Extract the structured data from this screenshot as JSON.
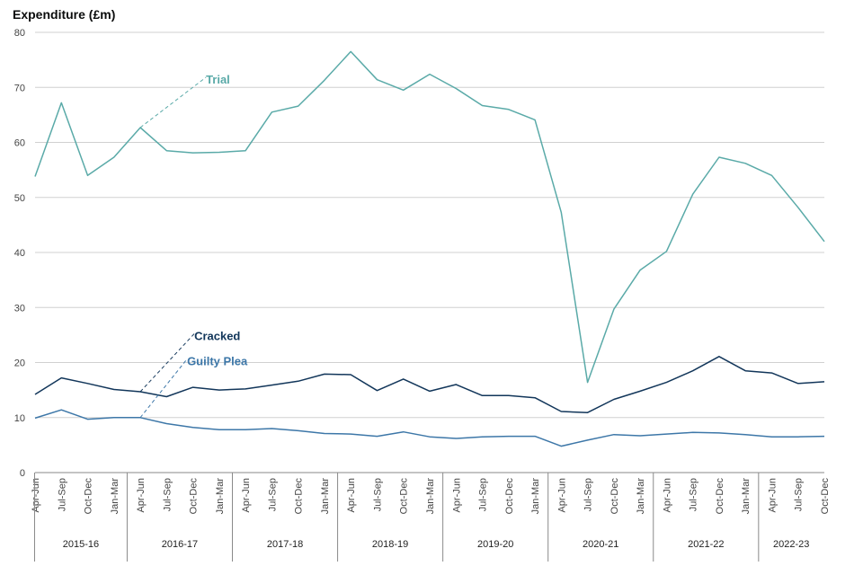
{
  "chart_data": {
    "type": "line",
    "title": "Expenditure (£m)",
    "ylabel": "Expenditure (£m)",
    "ylim": [
      0,
      80
    ],
    "yticks": [
      0,
      10,
      20,
      30,
      40,
      50,
      60,
      70,
      80
    ],
    "grid": true,
    "categories": [
      "Apr-Jun",
      "Jul-Sep",
      "Oct-Dec",
      "Jan-Mar",
      "Apr-Jun",
      "Jul-Sep",
      "Oct-Dec",
      "Jan-Mar",
      "Apr-Jun",
      "Jul-Sep",
      "Oct-Dec",
      "Jan-Mar",
      "Apr-Jun",
      "Jul-Sep",
      "Oct-Dec",
      "Jan-Mar",
      "Apr-Jun",
      "Jul-Sep",
      "Oct-Dec",
      "Jan-Mar",
      "Apr-Jun",
      "Jul-Sep",
      "Oct-Dec",
      "Jan-Mar",
      "Apr-Jun",
      "Jul-Sep",
      "Oct-Dec",
      "Jan-Mar",
      "Apr-Jun",
      "Jul-Sep",
      "Oct-Dec"
    ],
    "groups": [
      {
        "label": "2015-16",
        "count": 4
      },
      {
        "label": "2016-17",
        "count": 4
      },
      {
        "label": "2017-18",
        "count": 4
      },
      {
        "label": "2018-19",
        "count": 4
      },
      {
        "label": "2019-20",
        "count": 4
      },
      {
        "label": "2020-21",
        "count": 4
      },
      {
        "label": "2021-22",
        "count": 4
      },
      {
        "label": "2022-23",
        "count": 3
      }
    ],
    "series": [
      {
        "name": "Trial",
        "color": "#5aaaa8",
        "label_anchor_index": 4,
        "values": [
          53.8,
          67.2,
          54.0,
          57.3,
          62.7,
          58.5,
          58.1,
          58.2,
          58.5,
          65.5,
          66.6,
          71.3,
          76.5,
          71.4,
          69.5,
          72.4,
          69.8,
          66.7,
          66.0,
          64.1,
          47.3,
          16.4,
          29.7,
          36.8,
          40.2,
          50.6,
          57.3,
          56.2,
          54.0,
          48.2,
          42.0
        ]
      },
      {
        "name": "Cracked",
        "color": "#12365a",
        "label_anchor_index": 4,
        "values": [
          14.2,
          17.2,
          16.2,
          15.1,
          14.7,
          13.8,
          15.5,
          15.0,
          15.2,
          15.9,
          16.6,
          17.9,
          17.8,
          14.9,
          17.0,
          14.8,
          16.0,
          14.0,
          14.0,
          13.6,
          11.1,
          10.9,
          13.3,
          14.8,
          16.4,
          18.5,
          21.1,
          18.5,
          18.1,
          16.2,
          16.5
        ]
      },
      {
        "name": "Guilty Plea",
        "color": "#3d77a8",
        "label_anchor_index": 4,
        "values": [
          9.9,
          11.4,
          9.7,
          10.0,
          10.0,
          8.9,
          8.2,
          7.8,
          7.8,
          8.0,
          7.6,
          7.1,
          7.0,
          6.6,
          7.4,
          6.5,
          6.2,
          6.5,
          6.6,
          6.6,
          4.8,
          5.9,
          6.9,
          6.7,
          7.0,
          7.3,
          7.2,
          6.9,
          6.5,
          6.5,
          6.6
        ]
      }
    ]
  }
}
